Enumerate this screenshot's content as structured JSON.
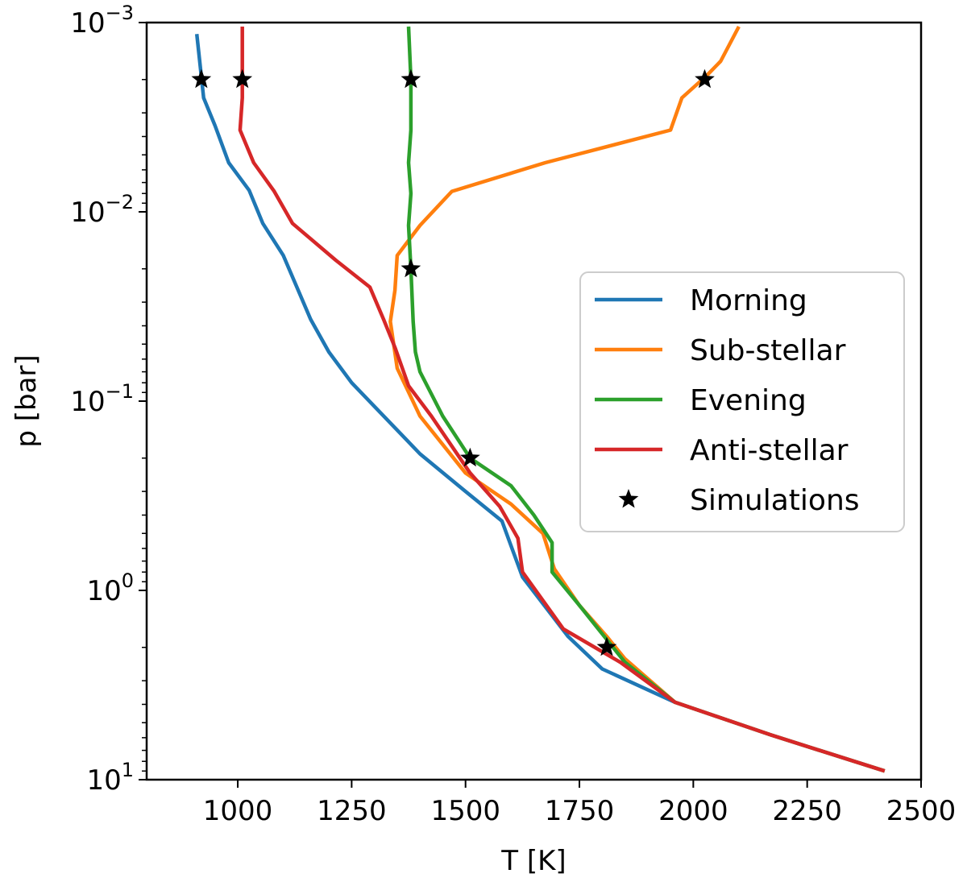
{
  "chart_data": {
    "type": "line",
    "title": "",
    "xlabel": "T [K]",
    "ylabel": "p [bar]",
    "xlim": [
      800,
      2500
    ],
    "ylim": [
      10,
      0.001
    ],
    "yscale": "log",
    "grid": false,
    "legend_position": "right",
    "x_ticks": [
      1000,
      1250,
      1500,
      1750,
      2000,
      2250,
      2500
    ],
    "y_ticks": [
      {
        "value": 0.001,
        "base": "10",
        "exp": "−3"
      },
      {
        "value": 0.01,
        "base": "10",
        "exp": "−2"
      },
      {
        "value": 0.1,
        "base": "10",
        "exp": "−1"
      },
      {
        "value": 1,
        "base": "10",
        "exp": "0"
      },
      {
        "value": 10,
        "base": "10",
        "exp": "1"
      }
    ],
    "series": [
      {
        "name": "Morning",
        "color": "#1f77b4",
        "points": [
          [
            910,
            0.00115
          ],
          [
            925,
            0.0025
          ],
          [
            950,
            0.0035
          ],
          [
            980,
            0.0055
          ],
          [
            1025,
            0.0077
          ],
          [
            1055,
            0.0115
          ],
          [
            1100,
            0.017
          ],
          [
            1160,
            0.037
          ],
          [
            1200,
            0.055
          ],
          [
            1250,
            0.08
          ],
          [
            1400,
            0.19
          ],
          [
            1500,
            0.3
          ],
          [
            1580,
            0.43
          ],
          [
            1625,
            0.85
          ],
          [
            1725,
            1.75
          ],
          [
            1800,
            2.6
          ],
          [
            1960,
            3.9
          ],
          [
            2170,
            5.8
          ],
          [
            2420,
            9.0
          ]
        ]
      },
      {
        "name": "Sub-stellar",
        "color": "#ff7f0e",
        "points": [
          [
            2100,
            0.00105
          ],
          [
            2060,
            0.0016
          ],
          [
            2030,
            0.0019
          ],
          [
            1975,
            0.0025
          ],
          [
            1950,
            0.0037
          ],
          [
            1675,
            0.0055
          ],
          [
            1470,
            0.0078
          ],
          [
            1400,
            0.0118
          ],
          [
            1350,
            0.017
          ],
          [
            1345,
            0.026
          ],
          [
            1335,
            0.038
          ],
          [
            1350,
            0.067
          ],
          [
            1400,
            0.12
          ],
          [
            1500,
            0.24
          ],
          [
            1600,
            0.35
          ],
          [
            1670,
            0.5
          ],
          [
            1695,
            0.77
          ],
          [
            1750,
            1.2
          ],
          [
            1810,
            1.75
          ],
          [
            1850,
            2.3
          ],
          [
            1960,
            3.9
          ],
          [
            2170,
            5.8
          ],
          [
            2420,
            9.0
          ]
        ]
      },
      {
        "name": "Evening",
        "color": "#2ca02c",
        "points": [
          [
            1375,
            0.00105
          ],
          [
            1380,
            0.002
          ],
          [
            1380,
            0.0037
          ],
          [
            1375,
            0.0055
          ],
          [
            1380,
            0.008
          ],
          [
            1375,
            0.0118
          ],
          [
            1380,
            0.02
          ],
          [
            1385,
            0.038
          ],
          [
            1390,
            0.055
          ],
          [
            1400,
            0.07
          ],
          [
            1450,
            0.12
          ],
          [
            1510,
            0.2
          ],
          [
            1600,
            0.28
          ],
          [
            1650,
            0.4
          ],
          [
            1690,
            0.56
          ],
          [
            1690,
            0.8
          ],
          [
            1750,
            1.2
          ],
          [
            1850,
            2.4
          ],
          [
            1960,
            3.9
          ],
          [
            2170,
            5.8
          ],
          [
            2420,
            9.0
          ]
        ]
      },
      {
        "name": "Anti-stellar",
        "color": "#d62728",
        "points": [
          [
            1010,
            0.00105
          ],
          [
            1010,
            0.0025
          ],
          [
            1005,
            0.0037
          ],
          [
            1035,
            0.0055
          ],
          [
            1080,
            0.0078
          ],
          [
            1120,
            0.0115
          ],
          [
            1215,
            0.018
          ],
          [
            1290,
            0.025
          ],
          [
            1320,
            0.037
          ],
          [
            1345,
            0.052
          ],
          [
            1375,
            0.083
          ],
          [
            1425,
            0.12
          ],
          [
            1510,
            0.24
          ],
          [
            1575,
            0.36
          ],
          [
            1615,
            0.53
          ],
          [
            1625,
            0.8
          ],
          [
            1715,
            1.6
          ],
          [
            1840,
            2.4
          ],
          [
            1960,
            3.9
          ],
          [
            2170,
            5.8
          ],
          [
            2420,
            9.0
          ]
        ]
      },
      {
        "name": "Simulations",
        "color": "#000000",
        "marker": "star",
        "points": [
          [
            920,
            0.002
          ],
          [
            1010,
            0.002
          ],
          [
            1380,
            0.002
          ],
          [
            2025,
            0.002
          ],
          [
            1380,
            0.02
          ],
          [
            1510,
            0.2
          ],
          [
            1810,
            2.0
          ]
        ]
      }
    ]
  }
}
